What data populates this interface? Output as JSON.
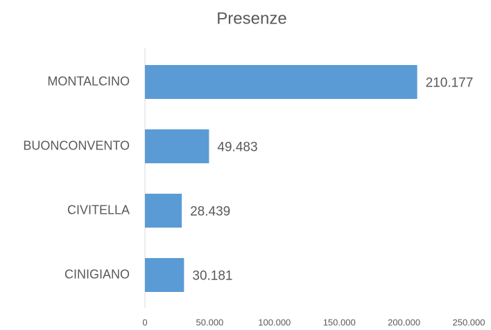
{
  "chart_data": {
    "type": "bar",
    "orientation": "horizontal",
    "title": "Presenze",
    "categories": [
      "MONTALCINO",
      "BUONCONVENTO",
      "CIVITELLA",
      "CINIGIANO"
    ],
    "values": [
      210177,
      49483,
      28439,
      30181
    ],
    "value_labels": [
      "210.177",
      "49.483",
      "28.439",
      "30.181"
    ],
    "color": "#5b9bd5",
    "xlim": [
      0,
      250000
    ],
    "xticks": [
      0,
      {
        "value": 50000,
        "label": "50.000"
      },
      {
        "value": 100000,
        "label": "100.000"
      },
      {
        "value": 150000,
        "label": "150.000"
      },
      {
        "value": 200000,
        "label": "200.000"
      },
      {
        "value": 250000,
        "label": "250.000"
      }
    ],
    "grid": false
  }
}
